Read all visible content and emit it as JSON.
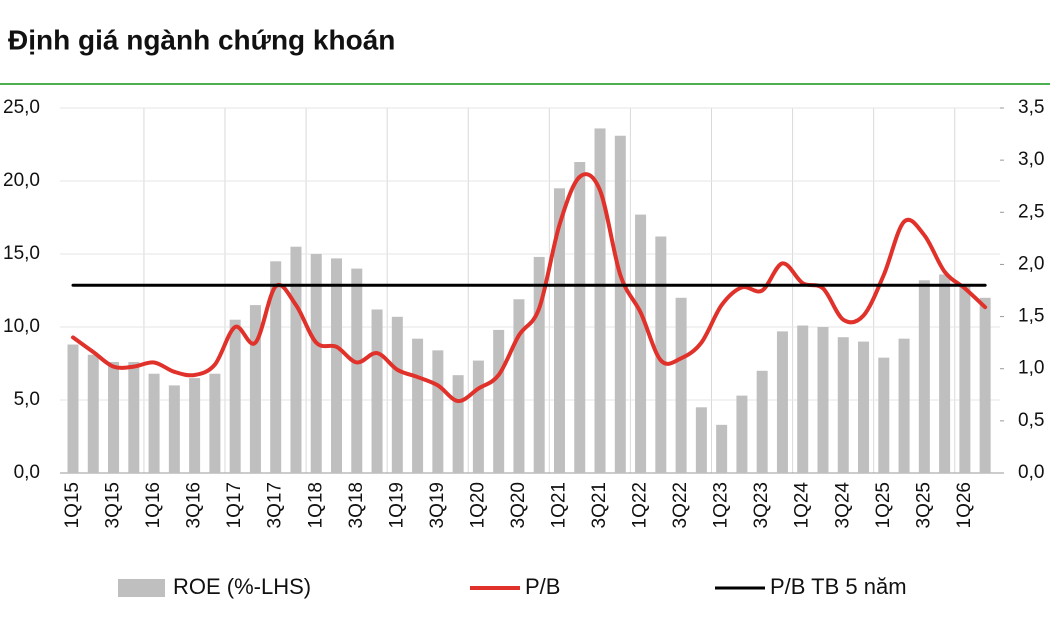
{
  "chart_data": {
    "type": "bar",
    "title": "Định giá ngành chứng khoán",
    "categories": [
      "1Q15",
      null,
      "3Q15",
      null,
      "1Q16",
      null,
      "3Q16",
      null,
      "1Q17",
      null,
      "3Q17",
      null,
      "1Q18",
      null,
      "3Q18",
      null,
      "1Q19",
      null,
      "3Q19",
      null,
      "1Q20",
      null,
      "3Q20",
      null,
      "1Q21",
      null,
      "3Q21",
      null,
      "1Q22",
      null,
      "3Q22",
      null,
      "1Q23",
      null,
      "3Q23",
      null,
      "1Q24",
      null,
      "3Q24",
      null,
      "1Q25",
      null,
      "3Q25",
      null,
      "1Q26",
      null
    ],
    "series": [
      {
        "name": "ROE (%-LHS)",
        "type": "bar",
        "axis": "y",
        "color": "#bfbfbf",
        "values": [
          8.8,
          8.1,
          7.6,
          7.6,
          6.8,
          6.0,
          6.5,
          6.8,
          10.5,
          11.5,
          14.5,
          15.5,
          15.0,
          14.7,
          14.0,
          11.2,
          10.7,
          9.2,
          8.4,
          6.7,
          7.7,
          9.8,
          11.9,
          14.8,
          19.5,
          21.3,
          23.6,
          23.1,
          17.7,
          16.2,
          12.0,
          4.5,
          3.3,
          5.3,
          7.0,
          9.7,
          10.1,
          10.0,
          9.3,
          9.0,
          7.9,
          9.2,
          13.2,
          13.6,
          12.9,
          12.0
        ]
      },
      {
        "name": "P/B",
        "type": "line",
        "axis": "y2",
        "color": "#e0312a",
        "values": [
          1.3,
          1.16,
          1.02,
          1.02,
          1.06,
          0.97,
          0.94,
          1.04,
          1.4,
          1.25,
          1.79,
          1.61,
          1.25,
          1.21,
          1.06,
          1.15,
          0.99,
          0.92,
          0.84,
          0.69,
          0.81,
          0.94,
          1.32,
          1.58,
          2.38,
          2.84,
          2.71,
          1.9,
          1.54,
          1.08,
          1.1,
          1.25,
          1.61,
          1.78,
          1.75,
          2.01,
          1.82,
          1.77,
          1.47,
          1.51,
          1.9,
          2.41,
          2.28,
          1.93,
          1.77,
          1.59
        ]
      },
      {
        "name": "P/B TB 5 năm",
        "type": "line",
        "axis": "y2",
        "color": "#000000",
        "values": [
          1.8,
          1.8,
          1.8,
          1.8,
          1.8,
          1.8,
          1.8,
          1.8,
          1.8,
          1.8,
          1.8,
          1.8,
          1.8,
          1.8,
          1.8,
          1.8,
          1.8,
          1.8,
          1.8,
          1.8,
          1.8,
          1.8,
          1.8,
          1.8,
          1.8,
          1.8,
          1.8,
          1.8,
          1.8,
          1.8,
          1.8,
          1.8,
          1.8,
          1.8,
          1.8,
          1.8,
          1.8,
          1.8,
          1.8,
          1.8,
          1.8,
          1.8,
          1.8,
          1.8,
          1.8,
          1.8
        ]
      }
    ],
    "ylim": [
      0,
      25
    ],
    "yticks": [
      {
        "value": 0,
        "label": "0,0"
      },
      {
        "value": 5,
        "label": "5,0"
      },
      {
        "value": 10,
        "label": "10,0"
      },
      {
        "value": 15,
        "label": "15,0"
      },
      {
        "value": 20,
        "label": "20,0"
      },
      {
        "value": 25,
        "label": "25,0"
      }
    ],
    "y2lim": [
      0,
      3.5
    ],
    "y2ticks": [
      {
        "value": 0,
        "label": "0,0"
      },
      {
        "value": 0.5,
        "label": "0,5"
      },
      {
        "value": 1,
        "label": "1,0"
      },
      {
        "value": 1.5,
        "label": "1,5"
      },
      {
        "value": 2,
        "label": "2,0"
      },
      {
        "value": 2.5,
        "label": "2,5"
      },
      {
        "value": 3,
        "label": "3,0"
      },
      {
        "value": 3.5,
        "label": "3,5"
      }
    ],
    "grid": true
  }
}
